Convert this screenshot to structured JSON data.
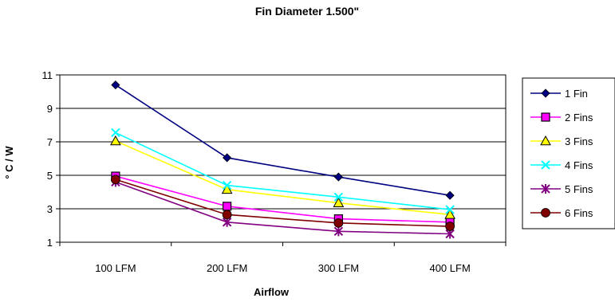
{
  "chart_data": {
    "type": "line",
    "title": "Fin Diameter 1.500\"",
    "xlabel": "Airflow",
    "ylabel": "° C / W",
    "categories": [
      "100 LFM",
      "200 LFM",
      "300 LFM",
      "400 LFM"
    ],
    "ylim": [
      1,
      11
    ],
    "yticks": [
      1,
      3,
      5,
      7,
      9,
      11
    ],
    "grid": "horizontal",
    "legend_position": "right",
    "series": [
      {
        "name": "1 Fin",
        "values": [
          10.4,
          6.05,
          4.9,
          3.8
        ],
        "color": "#000080",
        "marker": "diamond"
      },
      {
        "name": "2 Fins",
        "values": [
          4.95,
          3.15,
          2.4,
          2.2
        ],
        "color": "#FF00FF",
        "marker": "square"
      },
      {
        "name": "3 Fins",
        "values": [
          7.05,
          4.15,
          3.35,
          2.65
        ],
        "color": "#FFFF00",
        "marker": "triangle"
      },
      {
        "name": "4 Fins",
        "values": [
          7.55,
          4.4,
          3.7,
          2.95
        ],
        "color": "#00FFFF",
        "marker": "x"
      },
      {
        "name": "5 Fins",
        "values": [
          4.6,
          2.2,
          1.65,
          1.5
        ],
        "color": "#800080",
        "marker": "star"
      },
      {
        "name": "6 Fins",
        "values": [
          4.75,
          2.65,
          2.15,
          1.95
        ],
        "color": "#800000",
        "marker": "circle"
      }
    ]
  }
}
